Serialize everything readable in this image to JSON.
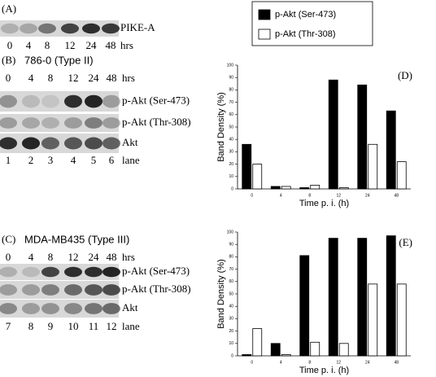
{
  "blots": [
    {
      "panel": "(A)",
      "times": [
        "0",
        "4",
        "8",
        "12",
        "24",
        "48"
      ],
      "time_unit": "hrs",
      "rows": [
        "PIKE-A"
      ]
    },
    {
      "panel": "(B)",
      "title": "786-0 (Type II)",
      "times": [
        "0",
        "4",
        "8",
        "12",
        "24",
        "48"
      ],
      "time_unit": "hrs",
      "rows": [
        "p-Akt (Ser-473)",
        "p-Akt (Thr-308)",
        "Akt"
      ],
      "lanes": [
        "1",
        "2",
        "3",
        "4",
        "5",
        "6"
      ],
      "lane_label": "lane"
    },
    {
      "panel": "(C)",
      "title": "MDA-MB435 (Type III)",
      "times": [
        "0",
        "4",
        "8",
        "12",
        "24",
        "48"
      ],
      "time_unit": "hrs",
      "rows": [
        "p-Akt (Ser-473)",
        "p-Akt (Thr-308)",
        "Akt"
      ],
      "lanes": [
        "7",
        "8",
        "9",
        "10",
        "11",
        "12"
      ],
      "lane_label": "lane"
    }
  ],
  "chart_data": [
    {
      "type": "bar",
      "title": "(D)",
      "x_label": "Time p. i. (h)",
      "y_label": "Band Density (%)",
      "categories": [
        "0",
        "4",
        "8",
        "12",
        "24",
        "48"
      ],
      "series": [
        {
          "name": "p-Akt (Ser-473)",
          "color": "#000000",
          "values": [
            36,
            2,
            1,
            88,
            84,
            63
          ]
        },
        {
          "name": "p-Akt (Thr-308)",
          "color": "#ffffff",
          "values": [
            20,
            2,
            3,
            1,
            36,
            22
          ]
        }
      ],
      "ylim": [
        0,
        100
      ],
      "yticks": [
        0,
        10,
        20,
        30,
        40,
        50,
        60,
        70,
        80,
        90,
        100
      ]
    },
    {
      "type": "bar",
      "title": "(E)",
      "x_label": "Time p. i. (h)",
      "y_label": "Band Density (%)",
      "categories": [
        "0",
        "4",
        "8",
        "12",
        "24",
        "48"
      ],
      "series": [
        {
          "color": "#000000",
          "values": [
            1,
            10,
            81,
            95,
            95,
            97
          ]
        },
        {
          "color": "#ffffff",
          "values": [
            22,
            1,
            11,
            10,
            58,
            58
          ]
        }
      ],
      "ylim": [
        0,
        100
      ],
      "yticks": [
        0,
        10,
        20,
        30,
        40,
        50,
        60,
        70,
        80,
        90,
        100
      ]
    }
  ]
}
